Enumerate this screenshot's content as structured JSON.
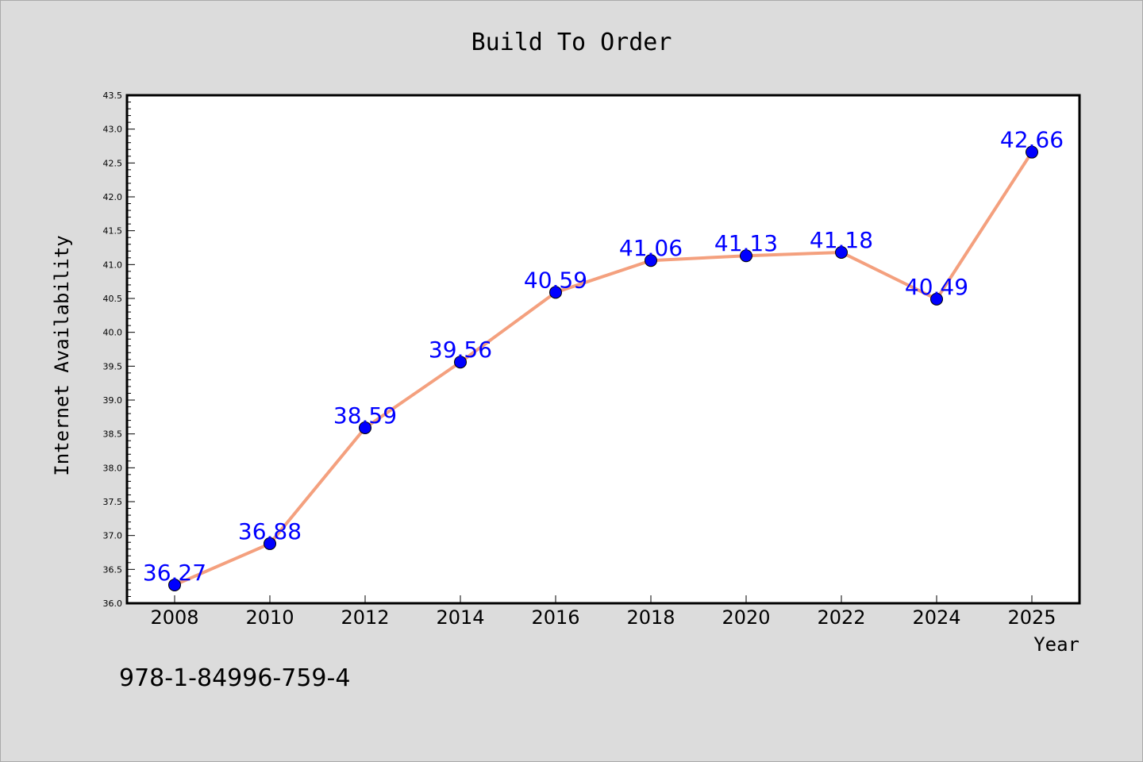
{
  "chart_data": {
    "type": "line",
    "title": "Build To Order",
    "xlabel": "Year",
    "ylabel": "Internet Availability",
    "x": [
      "2008",
      "2010",
      "2012",
      "2014",
      "2016",
      "2018",
      "2020",
      "2022",
      "2024",
      "2025"
    ],
    "series": [
      {
        "values": [
          36.27,
          36.88,
          38.59,
          39.56,
          40.59,
          41.06,
          41.13,
          41.18,
          40.49,
          42.66
        ],
        "labels": [
          "36.27",
          "36.88",
          "38.59",
          "39.56",
          "40.59",
          "41.06",
          "41.13",
          "41.18",
          "40.49",
          "42.66"
        ],
        "color": "#f4a07e",
        "marker_color": "#0000ff"
      }
    ],
    "ylim": [
      36.0,
      43.5
    ],
    "yticks": [
      "36.0",
      "36.5",
      "37.0",
      "37.5",
      "38.0",
      "38.5",
      "39.0",
      "39.5",
      "40.0",
      "40.5",
      "41.0",
      "41.5",
      "42.0",
      "42.5",
      "43.0",
      "43.5"
    ],
    "grid": false,
    "label_color": "#0000ff"
  },
  "footer": {
    "isbn": "978-1-84996-759-4"
  },
  "colors": {
    "background": "#dcdcdc",
    "plot_background": "#ffffff"
  }
}
